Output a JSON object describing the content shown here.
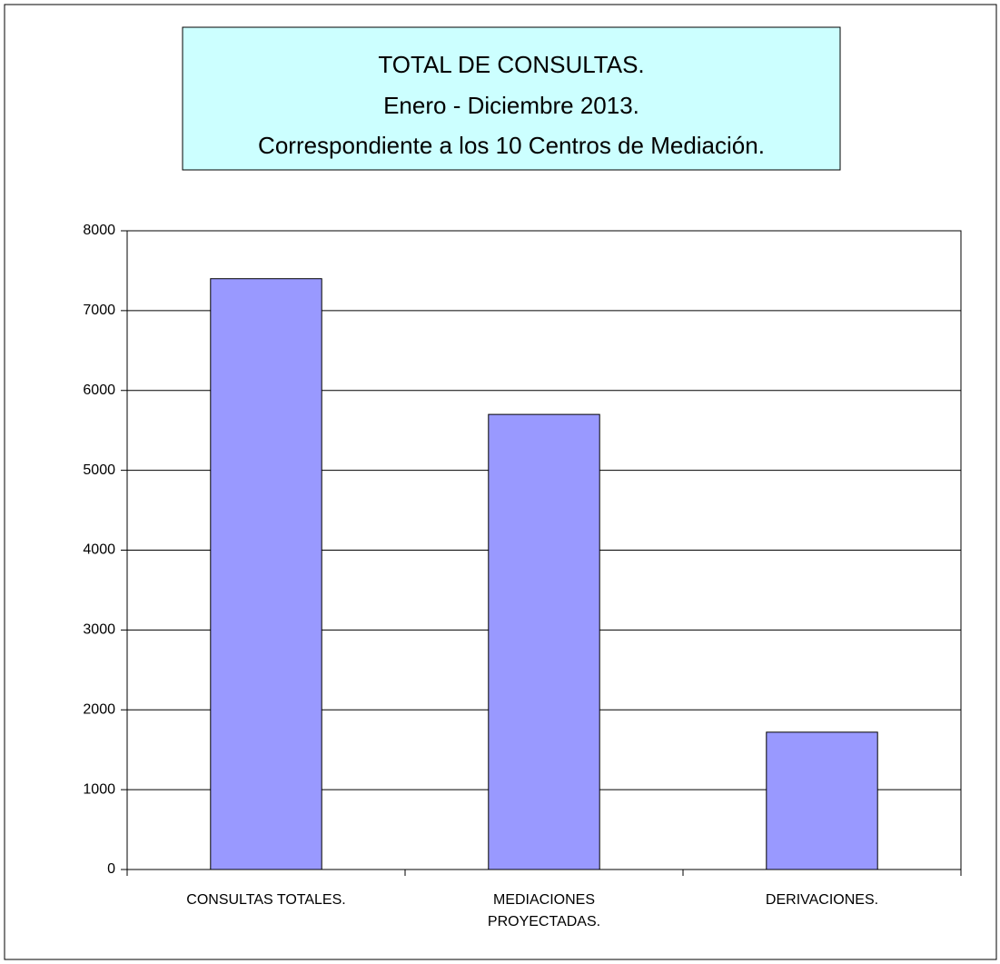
{
  "chart_data": {
    "type": "bar",
    "title": "TOTAL DE CONSULTAS.",
    "subtitle": [
      "Enero - Diciembre 2013.",
      "Correspondiente a los 10 Centros de Mediación."
    ],
    "categories": [
      "CONSULTAS TOTALES.",
      "MEDIACIONES PROYECTADAS.",
      "DERIVACIONES."
    ],
    "values": [
      7400,
      5700,
      1720
    ],
    "color": "#9999ff",
    "ylim": [
      0,
      8000
    ],
    "yticks": [
      0,
      1000,
      2000,
      3000,
      4000,
      5000,
      6000,
      7000,
      8000
    ],
    "grid": true
  }
}
